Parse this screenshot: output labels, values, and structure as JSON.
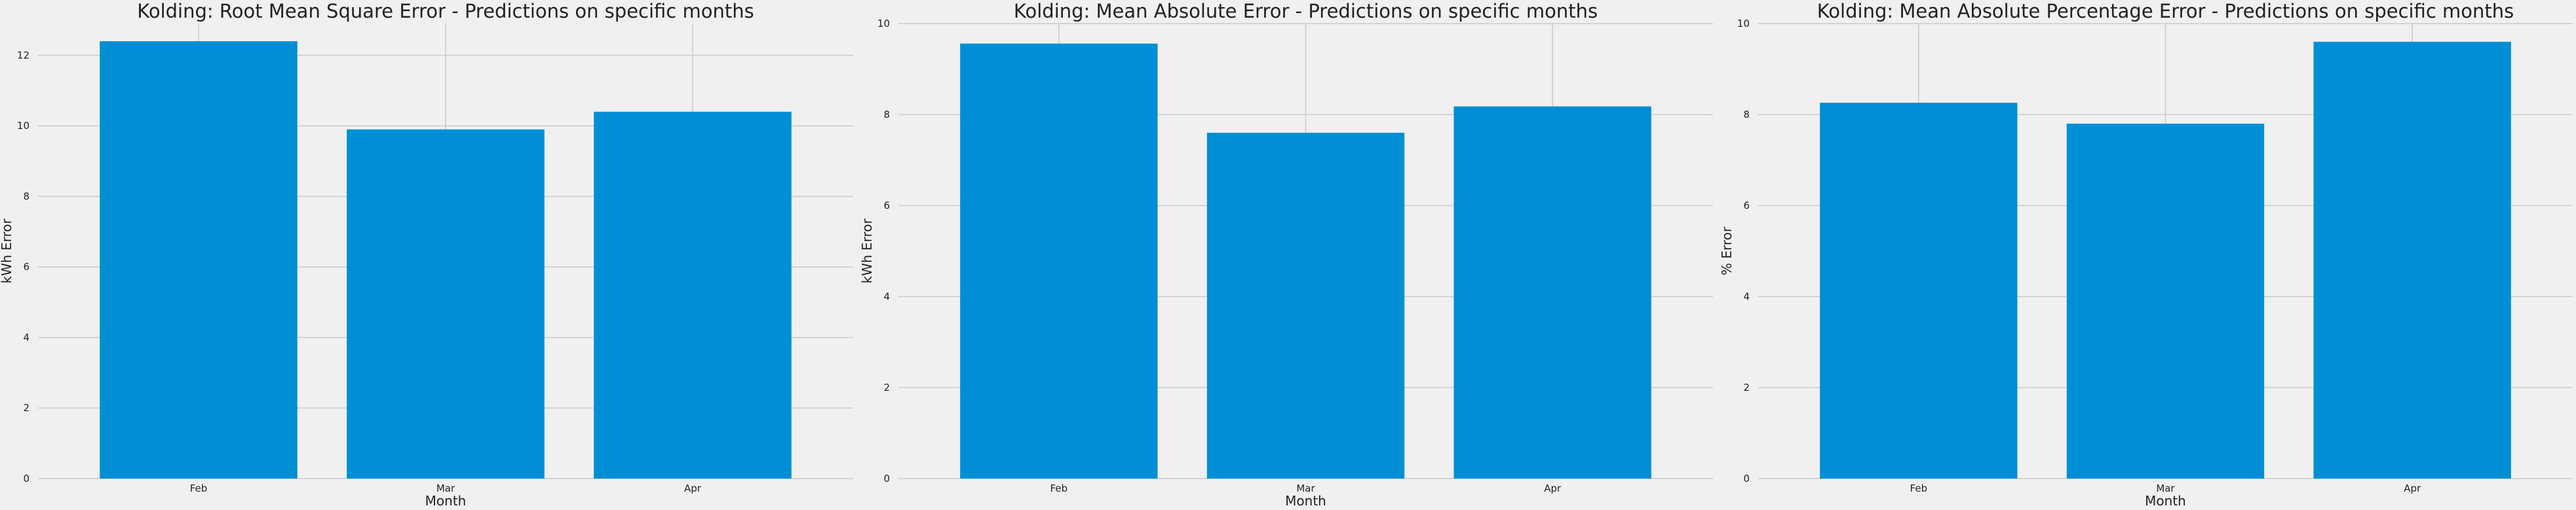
{
  "style": {
    "background": "#f0f0f0",
    "bar_color": "#008fd5",
    "grid_color": "#cbcbcb",
    "text_color": "#222222"
  },
  "chart_data": [
    {
      "type": "bar",
      "title": "Kolding: Root Mean Square Error - Predictions on specific months",
      "xlabel": "Month",
      "ylabel": "kWh Error",
      "categories": [
        "Feb",
        "Mar",
        "Apr"
      ],
      "values": [
        12.4,
        9.9,
        10.4
      ],
      "ylim": [
        0,
        12.9
      ],
      "yticks": [
        0,
        2,
        4,
        6,
        8,
        10,
        12
      ],
      "grid": true
    },
    {
      "type": "bar",
      "title": "Kolding: Mean Absolute Error - Predictions on specific months",
      "xlabel": "Month",
      "ylabel": "kWh Error",
      "categories": [
        "Feb",
        "Mar",
        "Apr"
      ],
      "values": [
        9.56,
        7.6,
        8.18
      ],
      "ylim": [
        0,
        10
      ],
      "yticks": [
        0,
        2,
        4,
        6,
        8,
        10
      ],
      "grid": true
    },
    {
      "type": "bar",
      "title": "Kolding: Mean Absolute Percentage Error - Predictions on specific months",
      "xlabel": "Month",
      "ylabel": "% Error",
      "categories": [
        "Feb",
        "Mar",
        "Apr"
      ],
      "values": [
        8.26,
        7.8,
        9.6
      ],
      "ylim": [
        0,
        10
      ],
      "yticks": [
        0,
        2,
        4,
        6,
        8,
        10
      ],
      "grid": true
    }
  ]
}
